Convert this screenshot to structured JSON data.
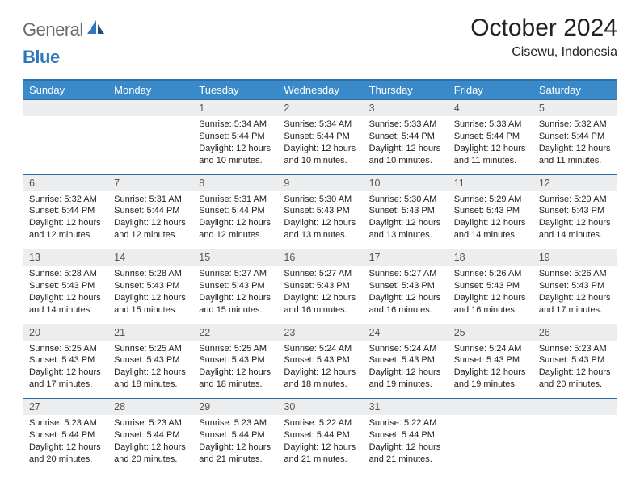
{
  "brand": {
    "part1": "General",
    "part2": "Blue"
  },
  "title": "October 2024",
  "location": "Cisewu, Indonesia",
  "colors": {
    "header_bg": "#3a8aca",
    "header_border": "#2f6ea8",
    "daynum_bg": "#ecedee",
    "brand_gray": "#6a6a6a",
    "brand_blue": "#2f77bc",
    "text": "#222222"
  },
  "dayHeaders": [
    "Sunday",
    "Monday",
    "Tuesday",
    "Wednesday",
    "Thursday",
    "Friday",
    "Saturday"
  ],
  "weeks": [
    [
      {
        "n": "",
        "lines": []
      },
      {
        "n": "",
        "lines": []
      },
      {
        "n": "1",
        "lines": [
          "Sunrise: 5:34 AM",
          "Sunset: 5:44 PM",
          "Daylight: 12 hours and 10 minutes."
        ]
      },
      {
        "n": "2",
        "lines": [
          "Sunrise: 5:34 AM",
          "Sunset: 5:44 PM",
          "Daylight: 12 hours and 10 minutes."
        ]
      },
      {
        "n": "3",
        "lines": [
          "Sunrise: 5:33 AM",
          "Sunset: 5:44 PM",
          "Daylight: 12 hours and 10 minutes."
        ]
      },
      {
        "n": "4",
        "lines": [
          "Sunrise: 5:33 AM",
          "Sunset: 5:44 PM",
          "Daylight: 12 hours and 11 minutes."
        ]
      },
      {
        "n": "5",
        "lines": [
          "Sunrise: 5:32 AM",
          "Sunset: 5:44 PM",
          "Daylight: 12 hours and 11 minutes."
        ]
      }
    ],
    [
      {
        "n": "6",
        "lines": [
          "Sunrise: 5:32 AM",
          "Sunset: 5:44 PM",
          "Daylight: 12 hours and 12 minutes."
        ]
      },
      {
        "n": "7",
        "lines": [
          "Sunrise: 5:31 AM",
          "Sunset: 5:44 PM",
          "Daylight: 12 hours and 12 minutes."
        ]
      },
      {
        "n": "8",
        "lines": [
          "Sunrise: 5:31 AM",
          "Sunset: 5:44 PM",
          "Daylight: 12 hours and 12 minutes."
        ]
      },
      {
        "n": "9",
        "lines": [
          "Sunrise: 5:30 AM",
          "Sunset: 5:43 PM",
          "Daylight: 12 hours and 13 minutes."
        ]
      },
      {
        "n": "10",
        "lines": [
          "Sunrise: 5:30 AM",
          "Sunset: 5:43 PM",
          "Daylight: 12 hours and 13 minutes."
        ]
      },
      {
        "n": "11",
        "lines": [
          "Sunrise: 5:29 AM",
          "Sunset: 5:43 PM",
          "Daylight: 12 hours and 14 minutes."
        ]
      },
      {
        "n": "12",
        "lines": [
          "Sunrise: 5:29 AM",
          "Sunset: 5:43 PM",
          "Daylight: 12 hours and 14 minutes."
        ]
      }
    ],
    [
      {
        "n": "13",
        "lines": [
          "Sunrise: 5:28 AM",
          "Sunset: 5:43 PM",
          "Daylight: 12 hours and 14 minutes."
        ]
      },
      {
        "n": "14",
        "lines": [
          "Sunrise: 5:28 AM",
          "Sunset: 5:43 PM",
          "Daylight: 12 hours and 15 minutes."
        ]
      },
      {
        "n": "15",
        "lines": [
          "Sunrise: 5:27 AM",
          "Sunset: 5:43 PM",
          "Daylight: 12 hours and 15 minutes."
        ]
      },
      {
        "n": "16",
        "lines": [
          "Sunrise: 5:27 AM",
          "Sunset: 5:43 PM",
          "Daylight: 12 hours and 16 minutes."
        ]
      },
      {
        "n": "17",
        "lines": [
          "Sunrise: 5:27 AM",
          "Sunset: 5:43 PM",
          "Daylight: 12 hours and 16 minutes."
        ]
      },
      {
        "n": "18",
        "lines": [
          "Sunrise: 5:26 AM",
          "Sunset: 5:43 PM",
          "Daylight: 12 hours and 16 minutes."
        ]
      },
      {
        "n": "19",
        "lines": [
          "Sunrise: 5:26 AM",
          "Sunset: 5:43 PM",
          "Daylight: 12 hours and 17 minutes."
        ]
      }
    ],
    [
      {
        "n": "20",
        "lines": [
          "Sunrise: 5:25 AM",
          "Sunset: 5:43 PM",
          "Daylight: 12 hours and 17 minutes."
        ]
      },
      {
        "n": "21",
        "lines": [
          "Sunrise: 5:25 AM",
          "Sunset: 5:43 PM",
          "Daylight: 12 hours and 18 minutes."
        ]
      },
      {
        "n": "22",
        "lines": [
          "Sunrise: 5:25 AM",
          "Sunset: 5:43 PM",
          "Daylight: 12 hours and 18 minutes."
        ]
      },
      {
        "n": "23",
        "lines": [
          "Sunrise: 5:24 AM",
          "Sunset: 5:43 PM",
          "Daylight: 12 hours and 18 minutes."
        ]
      },
      {
        "n": "24",
        "lines": [
          "Sunrise: 5:24 AM",
          "Sunset: 5:43 PM",
          "Daylight: 12 hours and 19 minutes."
        ]
      },
      {
        "n": "25",
        "lines": [
          "Sunrise: 5:24 AM",
          "Sunset: 5:43 PM",
          "Daylight: 12 hours and 19 minutes."
        ]
      },
      {
        "n": "26",
        "lines": [
          "Sunrise: 5:23 AM",
          "Sunset: 5:43 PM",
          "Daylight: 12 hours and 20 minutes."
        ]
      }
    ],
    [
      {
        "n": "27",
        "lines": [
          "Sunrise: 5:23 AM",
          "Sunset: 5:44 PM",
          "Daylight: 12 hours and 20 minutes."
        ]
      },
      {
        "n": "28",
        "lines": [
          "Sunrise: 5:23 AM",
          "Sunset: 5:44 PM",
          "Daylight: 12 hours and 20 minutes."
        ]
      },
      {
        "n": "29",
        "lines": [
          "Sunrise: 5:23 AM",
          "Sunset: 5:44 PM",
          "Daylight: 12 hours and 21 minutes."
        ]
      },
      {
        "n": "30",
        "lines": [
          "Sunrise: 5:22 AM",
          "Sunset: 5:44 PM",
          "Daylight: 12 hours and 21 minutes."
        ]
      },
      {
        "n": "31",
        "lines": [
          "Sunrise: 5:22 AM",
          "Sunset: 5:44 PM",
          "Daylight: 12 hours and 21 minutes."
        ]
      },
      {
        "n": "",
        "lines": []
      },
      {
        "n": "",
        "lines": []
      }
    ]
  ]
}
